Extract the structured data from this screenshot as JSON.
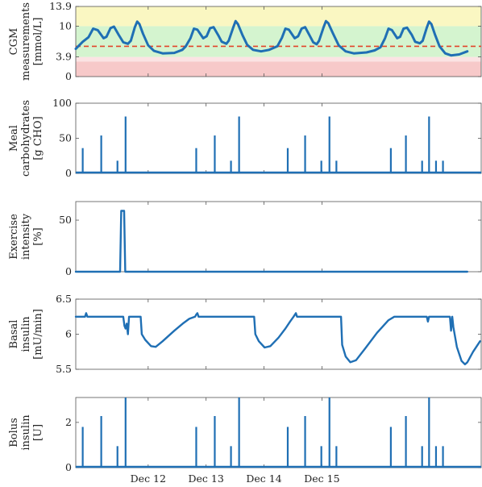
{
  "chart_data": [
    {
      "type": "line",
      "ylabel": [
        "CGM",
        "measurements",
        "[mmol/L]"
      ],
      "ylim": [
        0,
        13.9
      ],
      "yticks": [
        "0",
        "3.9",
        "10",
        "13.9"
      ],
      "bands": [
        {
          "from": 0,
          "to": 3.0,
          "color": "#f7c9c9"
        },
        {
          "from": 3.0,
          "to": 3.9,
          "color": "#fbe3e3"
        },
        {
          "from": 3.9,
          "to": 10,
          "color": "#d4f4cf"
        },
        {
          "from": 10,
          "to": 13.9,
          "color": "#faf7c2"
        }
      ],
      "reference_line": {
        "value": 6,
        "color": "#e2442a",
        "style": "dashed"
      },
      "series": [
        {
          "color": "#1f6fb4",
          "points": [
            [
              0.0,
              5.5
            ],
            [
              0.12,
              6.9
            ],
            [
              0.22,
              7.8
            ],
            [
              0.3,
              9.5
            ],
            [
              0.38,
              9.2
            ],
            [
              0.48,
              7.6
            ],
            [
              0.53,
              7.9
            ],
            [
              0.6,
              9.6
            ],
            [
              0.66,
              9.9
            ],
            [
              0.74,
              8.3
            ],
            [
              0.82,
              6.8
            ],
            [
              0.9,
              6.5
            ],
            [
              0.95,
              7.1
            ],
            [
              1.02,
              9.8
            ],
            [
              1.06,
              10.9
            ],
            [
              1.1,
              10.4
            ],
            [
              1.16,
              8.5
            ],
            [
              1.25,
              6.2
            ],
            [
              1.35,
              5.1
            ],
            [
              1.5,
              4.6
            ],
            [
              1.7,
              4.7
            ],
            [
              1.84,
              5.3
            ],
            [
              1.9,
              6.0
            ],
            [
              1.98,
              7.6
            ],
            [
              2.04,
              9.5
            ],
            [
              2.1,
              9.3
            ],
            [
              2.2,
              7.6
            ],
            [
              2.26,
              8.0
            ],
            [
              2.32,
              9.6
            ],
            [
              2.38,
              9.8
            ],
            [
              2.46,
              8.2
            ],
            [
              2.52,
              6.9
            ],
            [
              2.6,
              6.5
            ],
            [
              2.64,
              7.1
            ],
            [
              2.72,
              9.8
            ],
            [
              2.76,
              11.0
            ],
            [
              2.8,
              10.4
            ],
            [
              2.88,
              8.2
            ],
            [
              2.96,
              6.3
            ],
            [
              3.06,
              5.3
            ],
            [
              3.2,
              5.0
            ],
            [
              3.34,
              5.3
            ],
            [
              3.48,
              6.0
            ],
            [
              3.56,
              7.7
            ],
            [
              3.62,
              9.5
            ],
            [
              3.68,
              9.3
            ],
            [
              3.78,
              7.6
            ],
            [
              3.84,
              8.0
            ],
            [
              3.9,
              9.5
            ],
            [
              3.96,
              9.8
            ],
            [
              4.04,
              8.1
            ],
            [
              4.1,
              6.8
            ],
            [
              4.16,
              6.4
            ],
            [
              4.2,
              7.1
            ],
            [
              4.28,
              9.8
            ],
            [
              4.32,
              11.0
            ],
            [
              4.36,
              10.6
            ],
            [
              4.44,
              8.6
            ],
            [
              4.54,
              6.2
            ],
            [
              4.66,
              5.0
            ],
            [
              4.8,
              4.6
            ],
            [
              5.02,
              4.8
            ],
            [
              5.16,
              5.2
            ],
            [
              5.26,
              5.8
            ],
            [
              5.34,
              7.6
            ],
            [
              5.4,
              9.5
            ],
            [
              5.46,
              9.2
            ],
            [
              5.55,
              7.6
            ],
            [
              5.6,
              7.9
            ],
            [
              5.66,
              9.5
            ],
            [
              5.72,
              9.7
            ],
            [
              5.8,
              8.3
            ],
            [
              5.86,
              6.9
            ],
            [
              5.94,
              6.6
            ],
            [
              5.99,
              7.1
            ],
            [
              6.06,
              9.7
            ],
            [
              6.1,
              10.9
            ],
            [
              6.14,
              10.4
            ],
            [
              6.2,
              8.4
            ],
            [
              6.28,
              6.0
            ],
            [
              6.38,
              4.6
            ],
            [
              6.48,
              4.2
            ],
            [
              6.62,
              4.4
            ],
            [
              6.76,
              5.0
            ]
          ]
        }
      ]
    },
    {
      "type": "bar",
      "ylabel": [
        "Meal",
        "carbohydrates",
        "[g CHO]"
      ],
      "ylim": [
        0,
        100
      ],
      "yticks": [
        "0",
        "50",
        "100"
      ],
      "series": [
        {
          "color": "#1f6fb4",
          "points": [
            [
              0.12,
              36
            ],
            [
              0.44,
              54
            ],
            [
              0.72,
              18
            ],
            [
              0.86,
              81
            ],
            [
              2.08,
              36
            ],
            [
              2.4,
              54
            ],
            [
              2.68,
              18
            ],
            [
              2.82,
              81
            ],
            [
              3.66,
              36
            ],
            [
              3.96,
              54
            ],
            [
              4.24,
              18
            ],
            [
              4.38,
              81
            ],
            [
              4.5,
              18
            ],
            [
              5.44,
              36
            ],
            [
              5.7,
              54
            ],
            [
              5.98,
              18
            ],
            [
              6.1,
              81
            ],
            [
              6.22,
              18
            ],
            [
              6.34,
              18
            ]
          ]
        }
      ]
    },
    {
      "type": "area",
      "ylabel": [
        "Exercise",
        "intensity",
        "[%]"
      ],
      "ylim": [
        0,
        68
      ],
      "yticks": [
        "0",
        "50"
      ],
      "series": [
        {
          "color": "#1f6fb4",
          "points": [
            [
              0.0,
              0
            ],
            [
              0.765,
              0
            ],
            [
              0.785,
              59
            ],
            [
              0.835,
              59
            ],
            [
              0.855,
              0
            ],
            [
              6.76,
              0
            ]
          ]
        }
      ]
    },
    {
      "type": "line",
      "ylabel": [
        "Basal",
        "insulin",
        "[mU/min]"
      ],
      "ylim": [
        5.5,
        6.5
      ],
      "yticks": [
        "5.5",
        "6",
        "6.5"
      ],
      "series": [
        {
          "color": "#1f6fb4",
          "points": [
            [
              0.0,
              6.25
            ],
            [
              0.16,
              6.25
            ],
            [
              0.18,
              6.3
            ],
            [
              0.2,
              6.25
            ],
            [
              0.82,
              6.25
            ],
            [
              0.84,
              6.12
            ],
            [
              0.86,
              6.08
            ],
            [
              0.88,
              6.15
            ],
            [
              0.9,
              6.0
            ],
            [
              0.92,
              6.25
            ],
            [
              1.12,
              6.25
            ],
            [
              1.14,
              6.0
            ],
            [
              1.2,
              5.92
            ],
            [
              1.3,
              5.83
            ],
            [
              1.38,
              5.82
            ],
            [
              1.5,
              5.9
            ],
            [
              1.7,
              6.05
            ],
            [
              1.86,
              6.16
            ],
            [
              1.96,
              6.22
            ],
            [
              2.06,
              6.25
            ],
            [
              2.08,
              6.28
            ],
            [
              2.1,
              6.3
            ],
            [
              2.12,
              6.25
            ],
            [
              2.7,
              6.25
            ],
            [
              3.08,
              6.25
            ],
            [
              3.1,
              6.0
            ],
            [
              3.16,
              5.9
            ],
            [
              3.26,
              5.81
            ],
            [
              3.36,
              5.83
            ],
            [
              3.5,
              5.95
            ],
            [
              3.62,
              6.08
            ],
            [
              3.7,
              6.18
            ],
            [
              3.76,
              6.25
            ],
            [
              3.8,
              6.3
            ],
            [
              3.82,
              6.25
            ],
            [
              4.52,
              6.25
            ],
            [
              4.58,
              6.25
            ],
            [
              4.6,
              5.85
            ],
            [
              4.66,
              5.68
            ],
            [
              4.74,
              5.6
            ],
            [
              4.84,
              5.63
            ],
            [
              5.0,
              5.8
            ],
            [
              5.2,
              6.02
            ],
            [
              5.4,
              6.2
            ],
            [
              5.5,
              6.25
            ],
            [
              6.06,
              6.25
            ],
            [
              6.08,
              6.18
            ],
            [
              6.1,
              6.25
            ],
            [
              6.46,
              6.25
            ],
            [
              6.48,
              6.05
            ],
            [
              6.5,
              6.25
            ],
            [
              6.52,
              6.1
            ],
            [
              6.58,
              5.82
            ],
            [
              6.66,
              5.62
            ],
            [
              6.72,
              5.57
            ],
            [
              6.76,
              5.6
            ],
            [
              6.86,
              5.75
            ],
            [
              6.98,
              5.9
            ]
          ]
        }
      ]
    },
    {
      "type": "bar",
      "ylabel": [
        "Bolus",
        "insulin",
        "[U]"
      ],
      "ylim": [
        0,
        3.1
      ],
      "yticks": [
        "0",
        "2"
      ],
      "series": [
        {
          "color": "#1f6fb4",
          "points": [
            [
              0.12,
              1.8
            ],
            [
              0.44,
              2.28
            ],
            [
              0.72,
              0.95
            ],
            [
              0.86,
              3.1
            ],
            [
              2.08,
              1.8
            ],
            [
              2.4,
              2.28
            ],
            [
              2.68,
              0.95
            ],
            [
              2.82,
              3.1
            ],
            [
              3.66,
              1.8
            ],
            [
              3.96,
              2.28
            ],
            [
              4.24,
              0.95
            ],
            [
              4.38,
              3.1
            ],
            [
              4.5,
              0.95
            ],
            [
              5.44,
              1.8
            ],
            [
              5.7,
              2.28
            ],
            [
              5.98,
              0.95
            ],
            [
              6.1,
              3.1
            ],
            [
              6.22,
              0.95
            ],
            [
              6.34,
              0.95
            ]
          ]
        }
      ],
      "xticks": [
        "Dec 12",
        "Dec 13",
        "Dec 14",
        "Dec 15"
      ]
    }
  ]
}
